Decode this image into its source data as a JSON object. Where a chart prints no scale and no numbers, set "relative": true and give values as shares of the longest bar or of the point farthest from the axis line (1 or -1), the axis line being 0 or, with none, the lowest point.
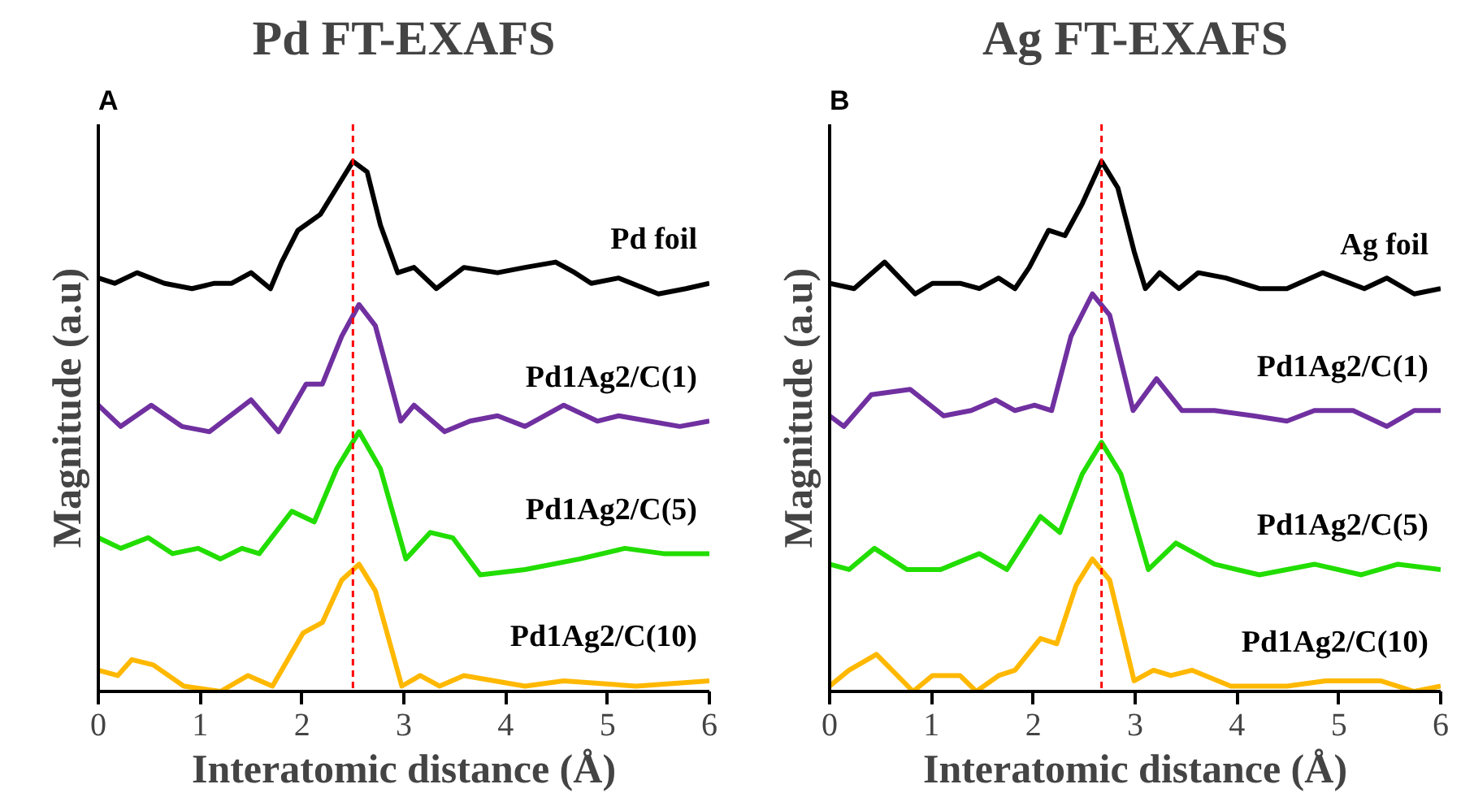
{
  "chart_data": [
    {
      "type": "line",
      "title": "Pd FT-EXAFS",
      "xlabel": "Interatomic distance (Å)",
      "ylabel": "Magnitude (a.u)",
      "annotations": [
        "A"
      ],
      "relative": true,
      "xlim": [
        0,
        6
      ],
      "xticks": [
        0,
        1,
        2,
        3,
        4,
        5,
        6
      ],
      "tick_labels": "x",
      "grid": false,
      "line_style": "solid",
      "ref_lines": [
        {
          "axis": "x",
          "value": 2.5,
          "color": "#ff0000",
          "line_style": "dashed"
        }
      ],
      "series": [
        {
          "name": "Pd foil",
          "color": "#000000",
          "x": [
            0,
            0.16,
            0.38,
            0.65,
            0.92,
            1.14,
            1.31,
            1.5,
            1.69,
            1.8,
            1.96,
            2.18,
            2.34,
            2.5,
            2.64,
            2.77,
            2.94,
            3.1,
            3.32,
            3.59,
            3.92,
            4.19,
            4.49,
            4.68,
            4.84,
            5.11,
            5.5,
            5.77,
            6
          ],
          "values": [
            0.78,
            0.77,
            0.79,
            0.77,
            0.76,
            0.77,
            0.77,
            0.79,
            0.76,
            0.81,
            0.87,
            0.9,
            0.95,
            1.0,
            0.98,
            0.88,
            0.79,
            0.8,
            0.76,
            0.8,
            0.79,
            0.8,
            0.81,
            0.79,
            0.77,
            0.78,
            0.75,
            0.76,
            0.77
          ]
        },
        {
          "name": "Pd1Ag2/C(1)",
          "color": "#7030a0",
          "x": [
            0,
            0.22,
            0.52,
            0.82,
            1.09,
            1.5,
            1.77,
            2.04,
            2.2,
            2.39,
            2.56,
            2.72,
            2.97,
            3.1,
            3.4,
            3.65,
            3.92,
            4.19,
            4.57,
            4.9,
            5.11,
            5.71,
            6
          ],
          "values": [
            0.54,
            0.5,
            0.54,
            0.5,
            0.49,
            0.55,
            0.49,
            0.58,
            0.58,
            0.67,
            0.73,
            0.69,
            0.51,
            0.54,
            0.49,
            0.51,
            0.52,
            0.5,
            0.54,
            0.51,
            0.52,
            0.5,
            0.51
          ]
        },
        {
          "name": "Pd1Ag2/C(5)",
          "color": "#22dd00",
          "x": [
            0,
            0.22,
            0.49,
            0.73,
            0.98,
            1.2,
            1.41,
            1.58,
            1.9,
            2.12,
            2.34,
            2.56,
            2.77,
            3.02,
            3.26,
            3.48,
            3.75,
            4.19,
            4.73,
            5.17,
            5.55,
            6
          ],
          "values": [
            0.29,
            0.27,
            0.29,
            0.26,
            0.27,
            0.25,
            0.27,
            0.26,
            0.34,
            0.32,
            0.42,
            0.49,
            0.42,
            0.25,
            0.3,
            0.29,
            0.22,
            0.23,
            0.25,
            0.27,
            0.26,
            0.26
          ]
        },
        {
          "name": "Pd1Ag2/C(10)",
          "color": "#ffb800",
          "x": [
            0,
            0.19,
            0.33,
            0.54,
            0.84,
            1.2,
            1.47,
            1.71,
            2.01,
            2.2,
            2.39,
            2.56,
            2.72,
            2.98,
            3.16,
            3.35,
            3.59,
            4.19,
            4.57,
            5.28,
            6
          ],
          "values": [
            0.04,
            0.03,
            0.06,
            0.05,
            0.01,
            0.0,
            0.03,
            0.01,
            0.11,
            0.13,
            0.21,
            0.24,
            0.19,
            0.01,
            0.03,
            0.01,
            0.03,
            0.01,
            0.02,
            0.01,
            0.02
          ]
        }
      ]
    },
    {
      "type": "line",
      "title": "Ag FT-EXAFS",
      "xlabel": "Interatomic distance (Å)",
      "ylabel": "Magnitude (a.u)",
      "annotations": [
        "B"
      ],
      "relative": true,
      "xlim": [
        0,
        6
      ],
      "xticks": [
        0,
        1,
        2,
        3,
        4,
        5,
        6
      ],
      "tick_labels": "x",
      "grid": false,
      "line_style": "solid",
      "ref_lines": [
        {
          "axis": "x",
          "value": 2.67,
          "color": "#ff0000",
          "line_style": "dashed"
        }
      ],
      "series": [
        {
          "name": "Ag foil",
          "color": "#000000",
          "x": [
            0,
            0.24,
            0.54,
            0.84,
            1.01,
            1.28,
            1.47,
            1.66,
            1.82,
            1.96,
            2.15,
            2.31,
            2.48,
            2.67,
            2.83,
            2.99,
            3.1,
            3.24,
            3.43,
            3.62,
            3.89,
            4.22,
            4.49,
            4.84,
            5.25,
            5.47,
            5.74,
            6
          ],
          "values": [
            0.77,
            0.76,
            0.81,
            0.75,
            0.77,
            0.77,
            0.76,
            0.78,
            0.76,
            0.8,
            0.87,
            0.86,
            0.92,
            1.0,
            0.95,
            0.83,
            0.76,
            0.79,
            0.76,
            0.79,
            0.78,
            0.76,
            0.76,
            0.79,
            0.76,
            0.78,
            0.75,
            0.76
          ]
        },
        {
          "name": "Pd1Ag2/C(1)",
          "color": "#7030a0",
          "x": [
            0,
            0.14,
            0.41,
            0.79,
            1.12,
            1.39,
            1.63,
            1.82,
            2.01,
            2.18,
            2.37,
            2.58,
            2.75,
            2.98,
            3.21,
            3.46,
            3.78,
            4.16,
            4.49,
            4.76,
            5.14,
            5.47,
            5.74,
            6
          ],
          "values": [
            0.52,
            0.5,
            0.56,
            0.57,
            0.52,
            0.53,
            0.55,
            0.53,
            0.54,
            0.53,
            0.67,
            0.75,
            0.71,
            0.53,
            0.59,
            0.53,
            0.53,
            0.52,
            0.51,
            0.53,
            0.53,
            0.5,
            0.53,
            0.53
          ]
        },
        {
          "name": "Pd1Ag2/C(5)",
          "color": "#22dd00",
          "x": [
            0,
            0.19,
            0.44,
            0.76,
            1.09,
            1.47,
            1.74,
            2.07,
            2.26,
            2.48,
            2.67,
            2.86,
            3.13,
            3.4,
            3.78,
            4.22,
            4.76,
            5.22,
            5.58,
            6
          ],
          "values": [
            0.24,
            0.23,
            0.27,
            0.23,
            0.23,
            0.26,
            0.23,
            0.33,
            0.3,
            0.41,
            0.47,
            0.41,
            0.23,
            0.28,
            0.24,
            0.22,
            0.24,
            0.22,
            0.24,
            0.23
          ]
        },
        {
          "name": "Pd1Ag2/C(10)",
          "color": "#ffb800",
          "x": [
            0,
            0.19,
            0.46,
            0.82,
            1.01,
            1.28,
            1.44,
            1.66,
            1.82,
            2.07,
            2.23,
            2.42,
            2.58,
            2.75,
            2.99,
            3.18,
            3.35,
            3.56,
            3.94,
            4.49,
            4.87,
            5.41,
            5.74,
            6
          ],
          "values": [
            0.01,
            0.04,
            0.07,
            0.0,
            0.03,
            0.03,
            0.0,
            0.03,
            0.04,
            0.1,
            0.09,
            0.2,
            0.25,
            0.21,
            0.02,
            0.04,
            0.03,
            0.04,
            0.01,
            0.01,
            0.02,
            0.02,
            0.0,
            0.01
          ]
        }
      ]
    }
  ]
}
